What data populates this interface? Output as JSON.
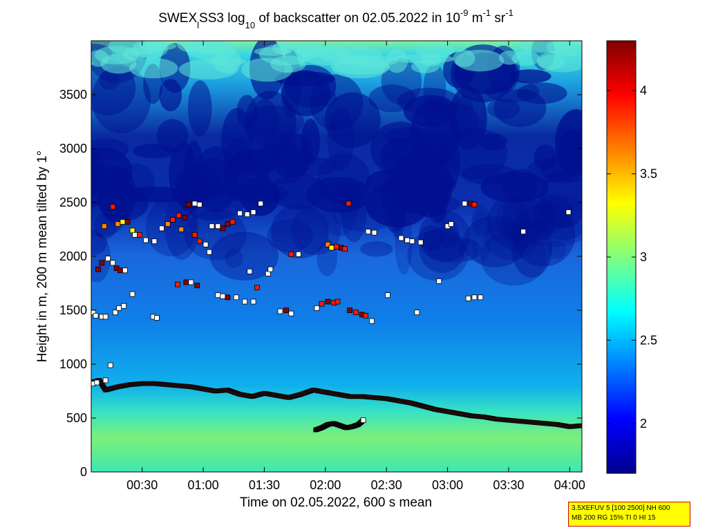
{
  "chart_data": {
    "type": "heatmap",
    "title": {
      "prefix": "SWEX",
      "sub_l": "l",
      "middle": "SS3 log",
      "sub_10": "10",
      "rest": " of backscatter on 02.05.2022 in 10",
      "sup1": "-9",
      "unit_m": " m",
      "sup2": "-1",
      "unit_sr": " sr",
      "sup3": "-1"
    },
    "xlabel": "Time on 02.05.2022, 600 s mean",
    "ylabel": "Height in m, 200 m mean tilted by 1°",
    "xlim_hours": [
      0.083,
      4.1
    ],
    "ylim": [
      0,
      4000
    ],
    "x_tick_labels": [
      "00:30",
      "01:00",
      "01:30",
      "02:00",
      "02:30",
      "03:00",
      "03:30",
      "04:00"
    ],
    "x_ticks_hours": [
      0.5,
      1.0,
      1.5,
      2.0,
      2.5,
      3.0,
      3.5,
      4.0
    ],
    "y_tick_labels": [
      "0",
      "500",
      "1000",
      "1500",
      "2000",
      "2500",
      "3000",
      "3500"
    ],
    "y_ticks": [
      0,
      500,
      1000,
      1500,
      2000,
      2500,
      3000,
      3500
    ],
    "colorbar": {
      "range": [
        1.7,
        4.3
      ],
      "tick_labels": [
        "2",
        "2.5",
        "3",
        "3.5",
        "4"
      ],
      "ticks": [
        2,
        2.5,
        3,
        3.5,
        4
      ],
      "colormap": "jet"
    },
    "boundary_layer_top": {
      "x": [
        0.083,
        0.15,
        0.2,
        0.3,
        0.4,
        0.5,
        0.6,
        0.7,
        0.8,
        0.9,
        1.0,
        1.1,
        1.2,
        1.3,
        1.4,
        1.5,
        1.6,
        1.7,
        1.8,
        1.9,
        2.0,
        2.1,
        2.2,
        2.3,
        2.4,
        2.5,
        2.6,
        2.7,
        2.8,
        2.9,
        3.0,
        3.1,
        3.2,
        3.3,
        3.4,
        3.5,
        3.6,
        3.7,
        3.8,
        3.9,
        4.0,
        4.1
      ],
      "y": [
        830,
        850,
        760,
        790,
        810,
        820,
        820,
        810,
        800,
        790,
        770,
        750,
        760,
        720,
        700,
        730,
        710,
        690,
        720,
        760,
        740,
        720,
        700,
        700,
        690,
        680,
        660,
        640,
        610,
        580,
        560,
        540,
        520,
        510,
        490,
        480,
        470,
        460,
        450,
        440,
        420,
        430
      ]
    },
    "lower_layer": {
      "x": [
        1.92,
        1.97,
        2.02,
        2.07,
        2.12,
        2.17,
        2.22,
        2.27,
        2.31
      ],
      "y": [
        390,
        410,
        440,
        450,
        430,
        410,
        420,
        440,
        480
      ]
    },
    "cloud_points": [
      {
        "x": 0.1,
        "y": 1480,
        "v": 1.0
      },
      {
        "x": 0.12,
        "y": 1450,
        "v": 1.0
      },
      {
        "x": 0.17,
        "y": 1440,
        "v": 1.0
      },
      {
        "x": 0.2,
        "y": 1440,
        "v": 1.0
      },
      {
        "x": 0.28,
        "y": 1480,
        "v": 1.0
      },
      {
        "x": 0.31,
        "y": 1520,
        "v": 1.0
      },
      {
        "x": 0.35,
        "y": 1540,
        "v": 1.0
      },
      {
        "x": 0.42,
        "y": 1650,
        "v": 1.0
      },
      {
        "x": 0.59,
        "y": 1440,
        "v": 1.0
      },
      {
        "x": 0.62,
        "y": 1430,
        "v": 1.0
      },
      {
        "x": 0.14,
        "y": 1880,
        "v": 0.0
      },
      {
        "x": 0.17,
        "y": 1940,
        "v": 0.0
      },
      {
        "x": 0.22,
        "y": 1980,
        "v": 1.0
      },
      {
        "x": 0.26,
        "y": 1940,
        "v": 1.0
      },
      {
        "x": 0.29,
        "y": 1890,
        "v": 0.0
      },
      {
        "x": 0.32,
        "y": 1870,
        "v": 0.0
      },
      {
        "x": 0.36,
        "y": 1870,
        "v": 1.0
      },
      {
        "x": 0.19,
        "y": 2280,
        "v": 0.5
      },
      {
        "x": 0.26,
        "y": 2460,
        "v": 0.1
      },
      {
        "x": 0.3,
        "y": 2300,
        "v": 0.5
      },
      {
        "x": 0.34,
        "y": 2320,
        "v": 0.9
      },
      {
        "x": 0.38,
        "y": 2320,
        "v": 0.0
      },
      {
        "x": 0.42,
        "y": 2240,
        "v": 0.9
      },
      {
        "x": 0.44,
        "y": 2200,
        "v": 1.0
      },
      {
        "x": 0.48,
        "y": 2200,
        "v": 0.1
      },
      {
        "x": 0.53,
        "y": 2150,
        "v": 1.0
      },
      {
        "x": 0.6,
        "y": 2140,
        "v": 1.0
      },
      {
        "x": 0.66,
        "y": 2260,
        "v": 1.0
      },
      {
        "x": 0.71,
        "y": 2300,
        "v": 0.5
      },
      {
        "x": 0.75,
        "y": 2340,
        "v": 0.1
      },
      {
        "x": 0.8,
        "y": 2380,
        "v": 0.1
      },
      {
        "x": 0.85,
        "y": 2360,
        "v": 0.0
      },
      {
        "x": 0.88,
        "y": 2480,
        "v": 0.0
      },
      {
        "x": 0.93,
        "y": 2490,
        "v": 1.0
      },
      {
        "x": 0.97,
        "y": 2480,
        "v": 1.0
      },
      {
        "x": 0.82,
        "y": 2250,
        "v": 0.5
      },
      {
        "x": 0.93,
        "y": 2200,
        "v": 0.1
      },
      {
        "x": 0.97,
        "y": 2140,
        "v": 0.1
      },
      {
        "x": 1.02,
        "y": 2110,
        "v": 1.0
      },
      {
        "x": 1.05,
        "y": 2040,
        "v": 1.0
      },
      {
        "x": 1.07,
        "y": 2280,
        "v": 1.0
      },
      {
        "x": 1.12,
        "y": 2280,
        "v": 1.0
      },
      {
        "x": 1.16,
        "y": 2260,
        "v": 0.0
      },
      {
        "x": 1.2,
        "y": 2300,
        "v": 0.0
      },
      {
        "x": 1.24,
        "y": 2320,
        "v": 0.1
      },
      {
        "x": 1.3,
        "y": 2400,
        "v": 1.0
      },
      {
        "x": 1.36,
        "y": 2390,
        "v": 1.0
      },
      {
        "x": 1.41,
        "y": 2410,
        "v": 1.0
      },
      {
        "x": 1.47,
        "y": 2490,
        "v": 1.0
      },
      {
        "x": 0.79,
        "y": 1740,
        "v": 0.1
      },
      {
        "x": 0.86,
        "y": 1760,
        "v": 0.0
      },
      {
        "x": 0.9,
        "y": 1760,
        "v": 1.0
      },
      {
        "x": 0.95,
        "y": 1730,
        "v": 0.0
      },
      {
        "x": 1.12,
        "y": 1640,
        "v": 1.0
      },
      {
        "x": 1.16,
        "y": 1630,
        "v": 1.0
      },
      {
        "x": 1.2,
        "y": 1620,
        "v": 0.0
      },
      {
        "x": 1.27,
        "y": 1620,
        "v": 1.0
      },
      {
        "x": 1.34,
        "y": 1580,
        "v": 1.0
      },
      {
        "x": 1.41,
        "y": 1580,
        "v": 1.0
      },
      {
        "x": 1.44,
        "y": 1710,
        "v": 0.1
      },
      {
        "x": 1.38,
        "y": 1860,
        "v": 1.0
      },
      {
        "x": 1.53,
        "y": 1840,
        "v": 1.0
      },
      {
        "x": 1.55,
        "y": 1880,
        "v": 1.0
      },
      {
        "x": 1.63,
        "y": 1490,
        "v": 1.0
      },
      {
        "x": 1.68,
        "y": 1500,
        "v": 0.0
      },
      {
        "x": 1.72,
        "y": 1470,
        "v": 1.0
      },
      {
        "x": 1.72,
        "y": 2020,
        "v": 0.1
      },
      {
        "x": 1.78,
        "y": 2020,
        "v": 1.0
      },
      {
        "x": 1.93,
        "y": 1520,
        "v": 1.0
      },
      {
        "x": 1.97,
        "y": 1560,
        "v": 0.1
      },
      {
        "x": 2.02,
        "y": 1580,
        "v": 0.0
      },
      {
        "x": 2.07,
        "y": 1570,
        "v": 0.1
      },
      {
        "x": 2.1,
        "y": 1580,
        "v": 0.1
      },
      {
        "x": 2.02,
        "y": 2110,
        "v": 0.5
      },
      {
        "x": 2.05,
        "y": 2080,
        "v": 0.9
      },
      {
        "x": 2.09,
        "y": 2090,
        "v": 0.1
      },
      {
        "x": 2.13,
        "y": 2080,
        "v": 0.0
      },
      {
        "x": 2.16,
        "y": 2070,
        "v": 0.1
      },
      {
        "x": 2.19,
        "y": 2490,
        "v": 0.1
      },
      {
        "x": 2.2,
        "y": 1500,
        "v": 0.0
      },
      {
        "x": 2.25,
        "y": 1480,
        "v": 0.1
      },
      {
        "x": 2.3,
        "y": 1460,
        "v": 0.0
      },
      {
        "x": 2.33,
        "y": 1450,
        "v": 0.1
      },
      {
        "x": 2.38,
        "y": 1400,
        "v": 1.0
      },
      {
        "x": 2.35,
        "y": 2230,
        "v": 1.0
      },
      {
        "x": 2.4,
        "y": 2220,
        "v": 1.0
      },
      {
        "x": 2.51,
        "y": 1640,
        "v": 1.0
      },
      {
        "x": 2.62,
        "y": 2170,
        "v": 1.0
      },
      {
        "x": 2.67,
        "y": 2150,
        "v": 1.0
      },
      {
        "x": 2.71,
        "y": 2140,
        "v": 1.0
      },
      {
        "x": 2.75,
        "y": 1480,
        "v": 1.0
      },
      {
        "x": 2.78,
        "y": 2130,
        "v": 1.0
      },
      {
        "x": 2.93,
        "y": 1770,
        "v": 1.0
      },
      {
        "x": 3.0,
        "y": 2280,
        "v": 1.0
      },
      {
        "x": 3.03,
        "y": 2300,
        "v": 1.0
      },
      {
        "x": 3.14,
        "y": 2490,
        "v": 1.0
      },
      {
        "x": 3.19,
        "y": 2490,
        "v": 0.0
      },
      {
        "x": 3.22,
        "y": 2480,
        "v": 0.1
      },
      {
        "x": 3.17,
        "y": 1610,
        "v": 1.0
      },
      {
        "x": 3.22,
        "y": 1620,
        "v": 1.0
      },
      {
        "x": 3.27,
        "y": 1620,
        "v": 1.0
      },
      {
        "x": 3.62,
        "y": 2230,
        "v": 1.0
      },
      {
        "x": 3.99,
        "y": 2410,
        "v": 1.0
      },
      {
        "x": 0.1,
        "y": 820,
        "v": 1.0
      },
      {
        "x": 0.13,
        "y": 830,
        "v": 1.0
      },
      {
        "x": 0.2,
        "y": 850,
        "v": 1.0
      },
      {
        "x": 0.24,
        "y": 990,
        "v": 1.0
      },
      {
        "x": 2.31,
        "y": 480,
        "v": 1.0
      }
    ]
  },
  "info_box": {
    "line1": "3.5XEFUV 5 [100 2500] NH 600",
    "line2": "MB 200 RG 15% TI 0 HI 15"
  }
}
